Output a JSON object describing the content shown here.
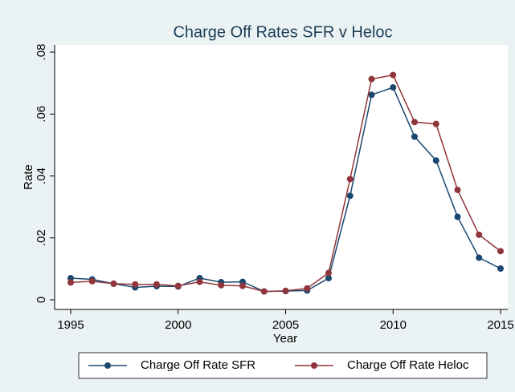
{
  "chart_data": {
    "type": "line",
    "title": "Charge Off Rates SFR v Heloc",
    "x": [
      1995,
      1996,
      1997,
      1998,
      1999,
      2000,
      2001,
      2002,
      2003,
      2004,
      2005,
      2006,
      2007,
      2008,
      2009,
      2010,
      2011,
      2012,
      2013,
      2014,
      2015
    ],
    "series": [
      {
        "name": "Charge Off Rate SFR",
        "color": "#1a476f",
        "values": [
          0.007,
          0.0066,
          0.0052,
          0.004,
          0.0044,
          0.0043,
          0.007,
          0.0057,
          0.0058,
          0.0027,
          0.0028,
          0.003,
          0.007,
          0.0336,
          0.0662,
          0.0686,
          0.0527,
          0.045,
          0.0268,
          0.0136,
          0.0101
        ]
      },
      {
        "name": "Charge Off Rate Heloc",
        "color": "#90353b",
        "values": [
          0.0056,
          0.006,
          0.0052,
          0.005,
          0.005,
          0.0045,
          0.0058,
          0.0047,
          0.0045,
          0.0027,
          0.0029,
          0.0037,
          0.0087,
          0.039,
          0.0713,
          0.0726,
          0.0574,
          0.0568,
          0.0355,
          0.021,
          0.0157
        ]
      }
    ],
    "xlabel": "Year",
    "ylabel": "Rate",
    "xlim": [
      1995,
      2015
    ],
    "xticks": [
      1995,
      2000,
      2005,
      2010,
      2015
    ],
    "ylim": [
      0,
      0.08
    ],
    "yticks": [
      0,
      {
        "value": 0.02,
        "label": ".02"
      },
      {
        "value": 0.04,
        "label": ".04"
      },
      {
        "value": 0.06,
        "label": ".06"
      },
      {
        "value": 0.08,
        "label": ".08"
      }
    ],
    "grid": false,
    "legend": "bottom"
  }
}
